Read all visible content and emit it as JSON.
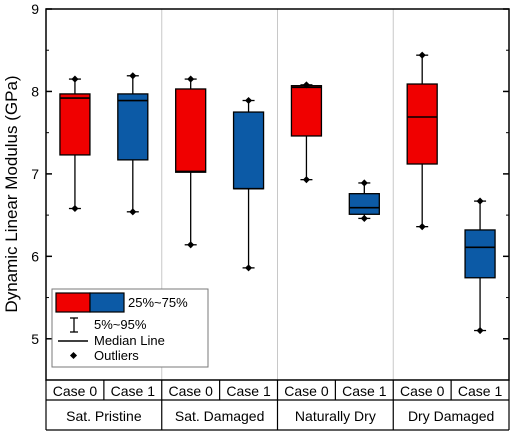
{
  "chart_data": {
    "type": "box",
    "ylabel": "Dynamic Linear Modulus (GPa)",
    "ylim": [
      4.5,
      9
    ],
    "yticks": [
      "5",
      "6",
      "7",
      "8",
      "9"
    ],
    "groups": [
      "Sat. Pristine",
      "Sat. Damaged",
      "Naturally Dry",
      "Dry Damaged"
    ],
    "cases": [
      "Case 0",
      "Case 1"
    ],
    "colors": {
      "case0": "#f00000",
      "case1": "#0c5aa6"
    },
    "boxes": [
      {
        "group": "Sat. Pristine",
        "case": "Case 0",
        "whisker_low": 6.58,
        "q1": 7.23,
        "median": 7.92,
        "q3": 7.97,
        "whisker_high": 8.15
      },
      {
        "group": "Sat. Pristine",
        "case": "Case 1",
        "whisker_low": 6.54,
        "q1": 7.17,
        "median": 7.89,
        "q3": 7.97,
        "whisker_high": 8.19
      },
      {
        "group": "Sat. Damaged",
        "case": "Case 0",
        "whisker_low": 6.14,
        "q1": 7.02,
        "median": 7.03,
        "q3": 8.03,
        "whisker_high": 8.15
      },
      {
        "group": "Sat. Damaged",
        "case": "Case 1",
        "whisker_low": 5.86,
        "q1": 6.82,
        "median": 6.82,
        "q3": 7.75,
        "whisker_high": 7.89
      },
      {
        "group": "Naturally Dry",
        "case": "Case 0",
        "whisker_low": 6.93,
        "q1": 7.46,
        "median": 8.05,
        "q3": 8.07,
        "whisker_high": 8.08
      },
      {
        "group": "Naturally Dry",
        "case": "Case 1",
        "whisker_low": 6.46,
        "q1": 6.51,
        "median": 6.59,
        "q3": 6.76,
        "whisker_high": 6.89
      },
      {
        "group": "Dry Damaged",
        "case": "Case 0",
        "whisker_low": 6.36,
        "q1": 7.12,
        "median": 7.69,
        "q3": 8.09,
        "whisker_high": 8.44
      },
      {
        "group": "Dry Damaged",
        "case": "Case 1",
        "whisker_low": 5.1,
        "q1": 5.74,
        "median": 6.11,
        "q3": 6.32,
        "whisker_high": 6.67
      }
    ],
    "legend": {
      "items": [
        "25%~75%",
        "5%~95%",
        "Median Line",
        "Outliers"
      ],
      "placement": "bottom-left"
    },
    "grid": "vertical group separators"
  }
}
